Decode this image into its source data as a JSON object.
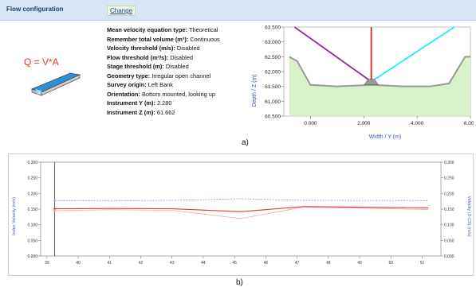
{
  "header": {
    "title": "Flow configuration",
    "change_label": "Change"
  },
  "formula": "Q = V*A",
  "params": [
    {
      "key": "Mean velocity equation type:",
      "value": "Theoretical"
    },
    {
      "key": "Remember total volume (m³):",
      "value": "Continuous"
    },
    {
      "key": "Velocity threshold (m/s):",
      "value": "Disabled"
    },
    {
      "key": "Flow threshold (m³/s):",
      "value": "Disabled"
    },
    {
      "key": "Stage threshold (m):",
      "value": "Disabled"
    },
    {
      "key": "Geometry type:",
      "value": "Irregular open channel"
    },
    {
      "key": "Survey origin:",
      "value": "Left Bank"
    },
    {
      "key": "Orientation:",
      "value": "Bottom mounted, looking up"
    },
    {
      "key": "Instrument Y (m):",
      "value": "2.280"
    },
    {
      "key": "Instrument Z (m):",
      "value": "61.662"
    }
  ],
  "labels": {
    "a": "a)",
    "b": "b)"
  },
  "colors": {
    "header_bg": "#d6e6f5",
    "fill": "#d7f2c8",
    "blue": "#8aa0ff",
    "red": "#e03a3a",
    "pink": "#f29a9a",
    "cyan": "#2ee6ff",
    "purple": "#8e2aa6"
  },
  "chart_data": [
    {
      "type": "area",
      "xlabel": "Width / Y (m)",
      "ylabel": "Depth / Z (m)",
      "xlim": [
        -1,
        6
      ],
      "ylim": [
        60.5,
        63.5
      ],
      "xticks": [
        "0.000",
        "2.000",
        "4.000",
        "6.000"
      ],
      "yticks": [
        "60.500",
        "61.000",
        "61.500",
        "62.000",
        "62.500",
        "63.000",
        "63.500"
      ],
      "profile": {
        "x": [
          -0.8,
          -0.5,
          0.0,
          1.0,
          2.3,
          3.5,
          4.5,
          5.2,
          5.8,
          6.0
        ],
        "y": [
          62.5,
          62.35,
          61.55,
          61.5,
          61.55,
          61.5,
          61.5,
          61.6,
          62.5,
          62.5
        ]
      },
      "instrument": {
        "y": 2.28,
        "z": 61.662
      }
    },
    {
      "type": "line",
      "xlim": [
        38.8,
        51.6
      ],
      "xticks": [
        "39",
        "40",
        "41",
        "42",
        "43",
        "44",
        "45",
        "46",
        "47",
        "48",
        "49",
        "50",
        "51"
      ],
      "ylim": [
        0,
        0.3
      ],
      "yticks": [
        "0.000",
        "0.050",
        "0.100",
        "0.150",
        "0.200",
        "0.250",
        "0.300"
      ],
      "y2ticks": [
        "0.000",
        "0.050",
        "0.100",
        "0.150",
        "0.200",
        "0.250",
        "0.300"
      ],
      "ylabel": "Index Velocity (m/s)",
      "y2label": "Velocity (X-CS) (m/s)",
      "cursor_x": 39.25,
      "series": [
        {
          "x": [
            39.25,
            41,
            43,
            45.2,
            47.2,
            51.2
          ],
          "y": [
            0.177,
            0.176,
            0.178,
            0.183,
            0.178,
            0.177
          ]
        },
        {
          "x": [
            39.25,
            41,
            43,
            45.2,
            47.2,
            51.2
          ],
          "y": [
            0.151,
            0.152,
            0.151,
            0.142,
            0.158,
            0.154
          ]
        },
        {
          "x": [
            39.25,
            41,
            43,
            45.2,
            47.2,
            51.2
          ],
          "y": [
            0.145,
            0.148,
            0.146,
            0.12,
            0.156,
            0.149
          ]
        }
      ]
    }
  ]
}
